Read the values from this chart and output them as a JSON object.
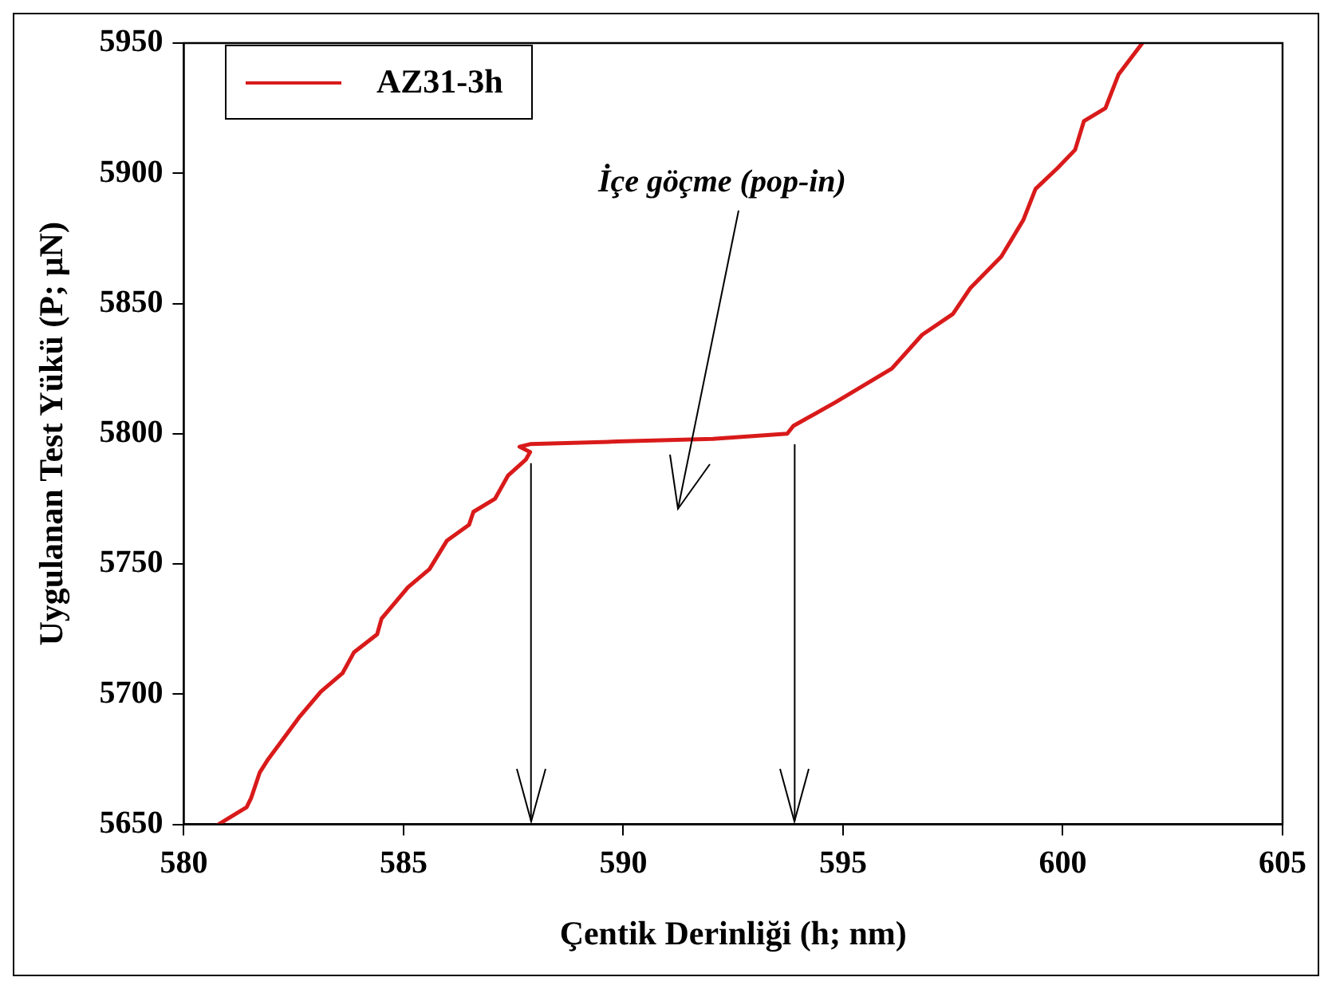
{
  "chart_data": {
    "type": "line",
    "xlabel": "Çentik Derinliği (h; nm)",
    "ylabel": "Uygulanan Test Yükü (P; µN)",
    "x": [
      580.79,
      581.43,
      581.53,
      581.73,
      581.92,
      582.62,
      583.12,
      583.61,
      583.87,
      584.4,
      584.5,
      585.1,
      585.59,
      585.99,
      586.49,
      586.59,
      587.08,
      587.38,
      587.78,
      587.88,
      587.64,
      587.88,
      589.86,
      592.04,
      593.73,
      593.87,
      594.82,
      596.11,
      596.8,
      597.5,
      597.9,
      598.6,
      599.1,
      599.38,
      599.88,
      600.28,
      600.48,
      600.97,
      601.27,
      601.81
    ],
    "series": [
      {
        "name": "AZ31-3h",
        "color": "#d91a1a",
        "values": [
          5650,
          5656.6,
          5660,
          5670,
          5675,
          5691,
          5701,
          5708,
          5716,
          5723,
          5729,
          5741,
          5748,
          5759,
          5765,
          5770,
          5775,
          5784,
          5790,
          5793,
          5795,
          5796,
          5797,
          5798,
          5800,
          5803,
          5812,
          5825,
          5838,
          5846,
          5856,
          5868,
          5882,
          5894,
          5902,
          5909,
          5920,
          5925,
          5938,
          5950
        ]
      }
    ],
    "xlim": [
      580,
      605
    ],
    "xticks": [
      580,
      585,
      590,
      595,
      600,
      605
    ],
    "ylim": [
      5650,
      5950
    ],
    "yticks": [
      5650,
      5700,
      5750,
      5800,
      5850,
      5900,
      5950
    ],
    "grid": false,
    "legend": "top left",
    "marker": "none",
    "line_style": "solid",
    "annotations": [
      "İçe göçme (pop-in)"
    ],
    "ref_lines": [
      {
        "axis": "x",
        "value": 587.9,
        "color": "#000000"
      },
      {
        "axis": "x",
        "value": 593.9,
        "color": "#000000"
      }
    ]
  }
}
